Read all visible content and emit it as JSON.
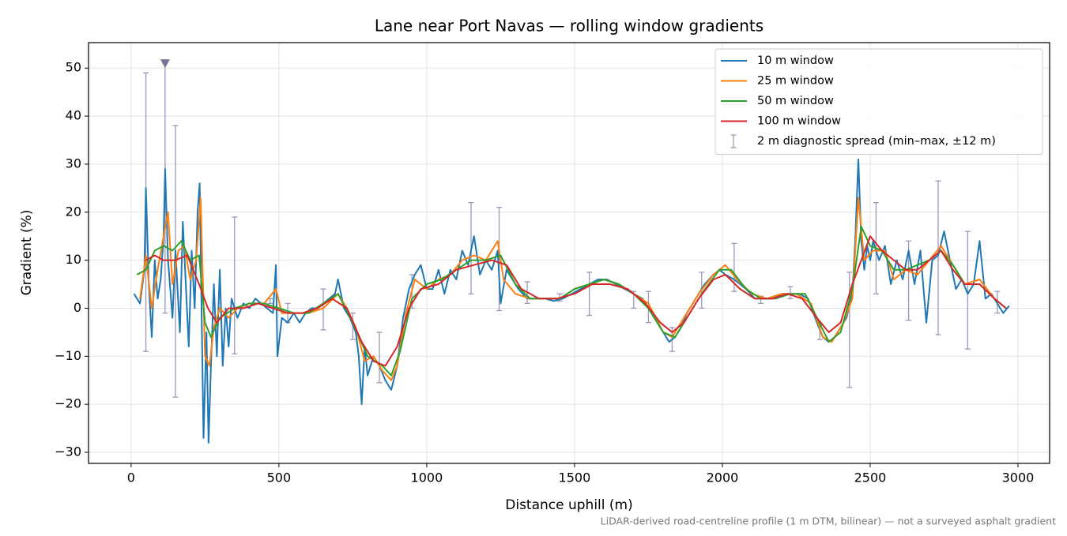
{
  "chart_data": {
    "type": "line",
    "title": "Lane near Port Navas — rolling window gradients",
    "x_label": "Distance uphill (m)",
    "y_label": "Gradient (%)",
    "footnote": "LiDAR-derived road-centreline profile (1 m DTM, bilinear) — not a surveyed asphalt gradient",
    "xlim": [
      -144,
      3107
    ],
    "ylim": [
      -32.3,
      55.3
    ],
    "xticks": [
      0,
      500,
      1000,
      1500,
      2000,
      2500,
      3000
    ],
    "yticks": [
      {
        "value": -30,
        "label": "−30"
      },
      {
        "value": -20,
        "label": "−20"
      },
      {
        "value": -10,
        "label": "−10"
      },
      0,
      10,
      20,
      30,
      40,
      50
    ],
    "grid": true,
    "legend": "upper right",
    "series": [
      {
        "name": "10 m window",
        "color": "#1f77b4",
        "x": [
          10,
          30,
          45,
          50,
          60,
          70,
          80,
          90,
          100,
          110,
          115,
          125,
          140,
          150,
          165,
          175,
          185,
          195,
          205,
          215,
          225,
          232,
          245,
          255,
          262,
          270,
          280,
          290,
          300,
          310,
          320,
          330,
          340,
          360,
          380,
          400,
          420,
          440,
          460,
          480,
          490,
          495,
          510,
          530,
          550,
          570,
          590,
          610,
          630,
          650,
          670,
          690,
          700,
          720,
          740,
          760,
          770,
          780,
          790,
          800,
          820,
          840,
          860,
          880,
          900,
          920,
          940,
          960,
          980,
          1000,
          1020,
          1040,
          1060,
          1080,
          1100,
          1120,
          1140,
          1160,
          1180,
          1200,
          1220,
          1240,
          1250,
          1270,
          1290,
          1310,
          1340,
          1370,
          1400,
          1430,
          1460,
          1490,
          1520,
          1550,
          1580,
          1610,
          1640,
          1670,
          1700,
          1730,
          1760,
          1790,
          1820,
          1840,
          1860,
          1880,
          1910,
          1940,
          1970,
          1990,
          2010,
          2040,
          2060,
          2080,
          2110,
          2140,
          2170,
          2200,
          2230,
          2260,
          2290,
          2320,
          2340,
          2360,
          2380,
          2400,
          2420,
          2440,
          2450,
          2460,
          2470,
          2480,
          2490,
          2500,
          2510,
          2530,
          2550,
          2570,
          2590,
          2610,
          2630,
          2650,
          2670,
          2690,
          2710,
          2730,
          2750,
          2770,
          2790,
          2810,
          2830,
          2850,
          2870,
          2890,
          2910,
          2930,
          2950,
          2970
        ],
        "values": [
          3,
          1,
          8,
          25,
          5,
          -6,
          10,
          2,
          6,
          15,
          29,
          10,
          -2,
          12,
          -5,
          18,
          5,
          -8,
          12,
          0,
          20,
          26,
          -27,
          -5,
          -28,
          -12,
          5,
          -10,
          8,
          -12,
          0,
          -8,
          2,
          -2,
          1,
          0,
          2,
          1,
          0,
          -1,
          9,
          -10,
          -2,
          -3,
          -1,
          -3,
          -1,
          0,
          0,
          1,
          2,
          3,
          6,
          0,
          -2,
          -5,
          -10,
          -20,
          -8,
          -14,
          -10,
          -12,
          -15,
          -17,
          -12,
          -2,
          4,
          7,
          9,
          4,
          4,
          8,
          3,
          8,
          6,
          12,
          9,
          15,
          7,
          10,
          8,
          12,
          1,
          8,
          6,
          4,
          2,
          2,
          2,
          1.5,
          2,
          3,
          4,
          5,
          6,
          6,
          5,
          4,
          3,
          2,
          -1,
          -4,
          -7,
          -6,
          -4,
          -1,
          2,
          5,
          7,
          8,
          7,
          6,
          5,
          4,
          2,
          2,
          2,
          3,
          3,
          3,
          2,
          -3,
          -6,
          -7,
          -6,
          -4,
          -2,
          3,
          15,
          31,
          14,
          8,
          13,
          10,
          14,
          10,
          13,
          5,
          10,
          6,
          12,
          5,
          12,
          -3,
          10,
          11,
          16,
          10,
          4,
          6,
          3,
          5,
          14,
          2,
          3,
          1,
          -1,
          0.5
        ]
      },
      {
        "name": "25 m window",
        "color": "#ff7f0e",
        "x": [
          30,
          50,
          70,
          90,
          110,
          125,
          140,
          160,
          180,
          200,
          220,
          235,
          250,
          265,
          280,
          300,
          330,
          360,
          400,
          450,
          490,
          510,
          550,
          600,
          650,
          700,
          730,
          760,
          790,
          820,
          850,
          880,
          900,
          930,
          960,
          1000,
          1040,
          1080,
          1120,
          1160,
          1200,
          1240,
          1260,
          1300,
          1350,
          1400,
          1450,
          1500,
          1550,
          1600,
          1650,
          1700,
          1750,
          1800,
          1830,
          1870,
          1920,
          1970,
          2010,
          2050,
          2100,
          2150,
          2200,
          2250,
          2300,
          2340,
          2370,
          2410,
          2440,
          2460,
          2480,
          2510,
          2550,
          2580,
          2620,
          2660,
          2700,
          2740,
          2780,
          2820,
          2870,
          2920,
          2960
        ],
        "values": [
          2,
          11,
          0,
          8,
          15,
          20,
          5,
          12,
          13,
          6,
          10,
          23,
          -10,
          -12,
          -4,
          0,
          -2,
          0,
          1,
          1,
          4,
          -1,
          -1,
          -1,
          0,
          3,
          0,
          -4,
          -11,
          -10,
          -13,
          -15,
          -12,
          -1,
          6,
          4,
          6,
          7,
          10,
          11,
          10,
          14,
          6,
          3,
          2,
          2,
          2,
          4,
          5,
          6,
          5,
          3,
          1,
          -5,
          -6,
          -2,
          3,
          7,
          9,
          6,
          3,
          2,
          3,
          3,
          1,
          -6,
          -7,
          -3,
          2,
          23,
          10,
          12,
          12,
          6,
          8,
          7,
          10,
          13,
          9,
          5,
          6,
          2,
          0
        ]
      },
      {
        "name": "50 m window",
        "color": "#2ca02c",
        "x": [
          20,
          50,
          80,
          110,
          140,
          170,
          200,
          230,
          250,
          270,
          300,
          350,
          400,
          450,
          500,
          550,
          600,
          650,
          700,
          750,
          800,
          850,
          880,
          910,
          950,
          1000,
          1050,
          1100,
          1150,
          1200,
          1250,
          1300,
          1350,
          1400,
          1450,
          1500,
          1550,
          1600,
          1650,
          1700,
          1750,
          1800,
          1840,
          1880,
          1930,
          1990,
          2030,
          2080,
          2130,
          2180,
          2230,
          2280,
          2320,
          2360,
          2400,
          2440,
          2470,
          2500,
          2540,
          2580,
          2620,
          2660,
          2700,
          2740,
          2780,
          2820,
          2870,
          2920,
          2960
        ],
        "values": [
          7,
          8,
          12,
          13,
          12,
          14,
          10,
          11,
          -3,
          -6,
          -2,
          0,
          1,
          1,
          0,
          -1,
          -1,
          1,
          3,
          -3,
          -10,
          -12,
          -14,
          -9,
          2,
          5,
          6,
          8,
          10,
          10,
          11,
          5,
          2,
          2,
          2,
          4,
          5,
          6,
          5,
          3,
          0,
          -5,
          -6,
          -2,
          3,
          8,
          8,
          4,
          2,
          2,
          3,
          3,
          -2,
          -7,
          -5,
          4,
          17,
          13,
          12,
          8,
          8,
          9,
          10,
          12,
          9,
          5,
          5,
          2,
          0
        ]
      },
      {
        "name": "100 m window",
        "color": "#d62728",
        "x": [
          50,
          80,
          110,
          150,
          190,
          230,
          260,
          290,
          330,
          380,
          430,
          480,
          530,
          580,
          630,
          680,
          730,
          780,
          820,
          860,
          900,
          940,
          980,
          1040,
          1100,
          1160,
          1220,
          1270,
          1320,
          1380,
          1440,
          1500,
          1560,
          1620,
          1680,
          1740,
          1790,
          1830,
          1870,
          1920,
          1970,
          2010,
          2060,
          2110,
          2170,
          2220,
          2270,
          2320,
          2360,
          2400,
          2440,
          2470,
          2500,
          2540,
          2580,
          2620,
          2660,
          2700,
          2740,
          2780,
          2820,
          2870,
          2920,
          2960
        ],
        "values": [
          10,
          11,
          10,
          10,
          11,
          5,
          0,
          -3,
          0,
          0,
          1,
          0,
          -1,
          -1,
          0,
          2,
          0,
          -7,
          -11,
          -12,
          -8,
          0,
          4,
          5,
          8,
          9,
          10,
          9,
          4,
          2,
          2,
          3,
          5,
          5,
          4,
          1,
          -3,
          -5,
          -3,
          2,
          6,
          7,
          4,
          2,
          2,
          3,
          2,
          -2,
          -5,
          -3,
          5,
          10,
          15,
          12,
          10,
          8,
          8,
          10,
          12,
          8,
          5,
          5,
          2,
          0
        ]
      }
    ],
    "errorbars": {
      "name": "2 m diagnostic spread (min–max, ±12 m)",
      "color": "#9d97b8",
      "x": [
        50,
        115,
        150,
        350,
        470,
        530,
        650,
        750,
        840,
        950,
        1150,
        1245,
        1340,
        1450,
        1550,
        1700,
        1750,
        1830,
        1930,
        2040,
        2130,
        2230,
        2330,
        2430,
        2520,
        2630,
        2730,
        2830,
        2930
      ],
      "low": [
        -9,
        -1,
        -18.5,
        -9.5,
        1,
        -3,
        -4.5,
        -6.5,
        -15.5,
        0,
        3,
        -0.5,
        1,
        1.5,
        -1.5,
        0,
        -3,
        -9,
        0,
        3.5,
        1,
        2,
        -6.5,
        -16.5,
        3,
        -2.5,
        -5.5,
        -8.5,
        -1
      ],
      "high": [
        49,
        51,
        38,
        19,
        2,
        1,
        4,
        -1,
        -5,
        7,
        22,
        21,
        5.5,
        3,
        7.5,
        3.5,
        3.5,
        -4,
        7.5,
        13.5,
        2.5,
        4.5,
        -3.5,
        7.5,
        22,
        14,
        26.5,
        16,
        3.5
      ]
    },
    "clip_markers": {
      "color": "#7a7098",
      "x": [
        115
      ],
      "y": [
        51
      ]
    }
  }
}
